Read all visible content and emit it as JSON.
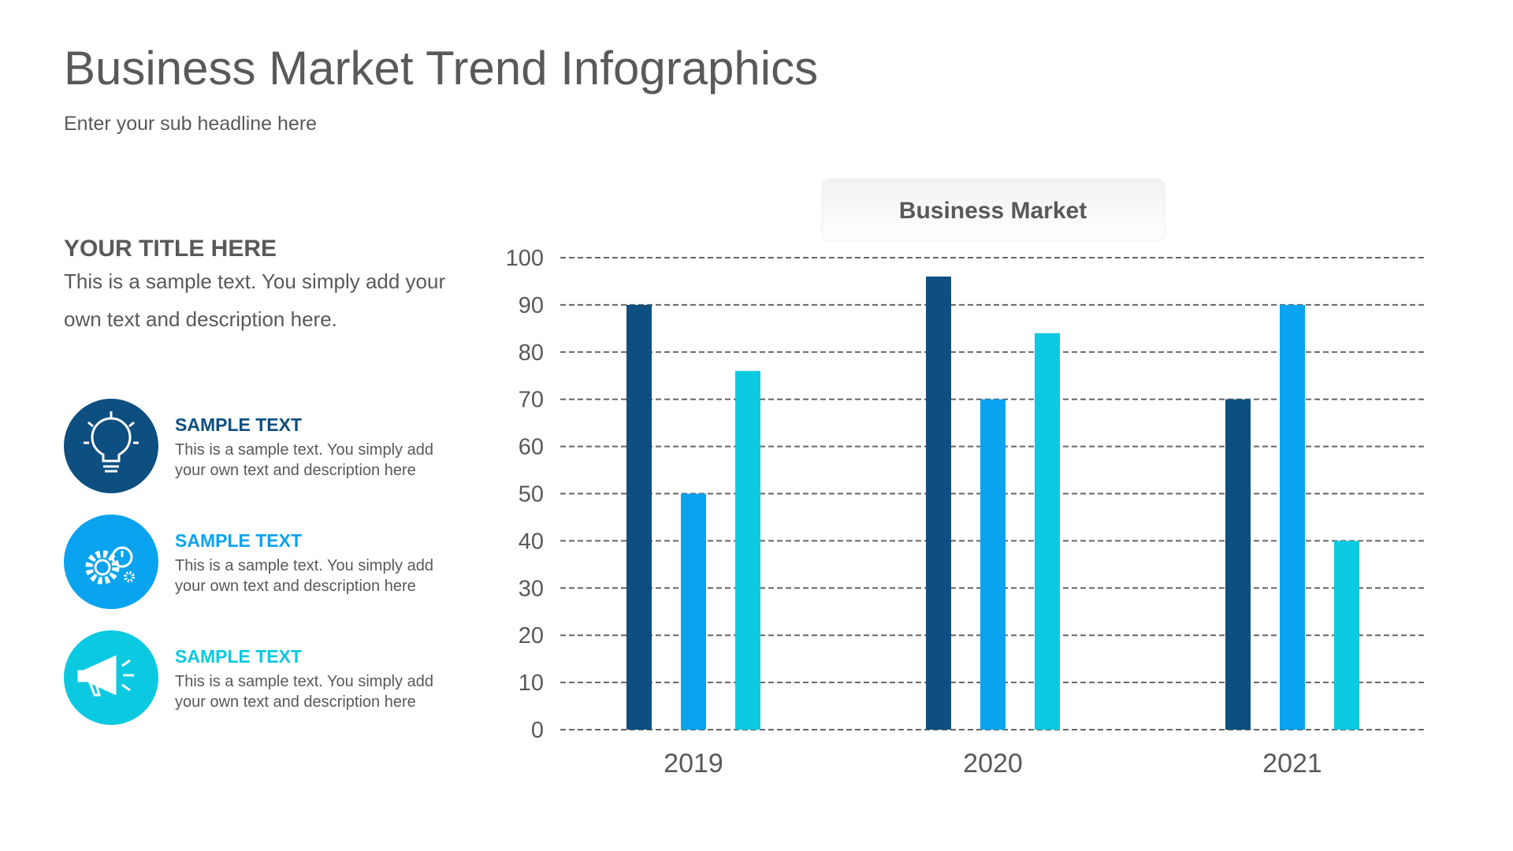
{
  "header": {
    "title": "Business Market Trend Infographics",
    "subtitle": "Enter your sub headline here"
  },
  "panel": {
    "title": "YOUR TITLE HERE",
    "lines": [
      "This is a sample text. You simply add your",
      "own text and description here."
    ]
  },
  "items": [
    {
      "title": "SAMPLE TEXT",
      "lines": [
        "This is a sample text. You simply add",
        "your own text and  description here"
      ]
    },
    {
      "title": "SAMPLE TEXT",
      "lines": [
        "This is a sample text. You simply add",
        "your own text and  description here"
      ]
    },
    {
      "title": "SAMPLE TEXT",
      "lines": [
        "This is a sample text. You simply add",
        "your own text and  description here"
      ]
    }
  ],
  "chart_data": {
    "type": "bar",
    "title": "Business Market",
    "categories": [
      "2019",
      "2020",
      "2021"
    ],
    "series": [
      {
        "color": "#0d4f80",
        "values": [
          90,
          96,
          70
        ]
      },
      {
        "color": "#0aa3ef",
        "values": [
          50,
          70,
          90
        ]
      },
      {
        "color": "#0bc9e0",
        "values": [
          76,
          84,
          40
        ]
      }
    ],
    "ylim": [
      0,
      100
    ],
    "yticks": [
      0,
      10,
      20,
      30,
      40,
      50,
      60,
      70,
      80,
      90,
      100
    ],
    "grid": true
  }
}
